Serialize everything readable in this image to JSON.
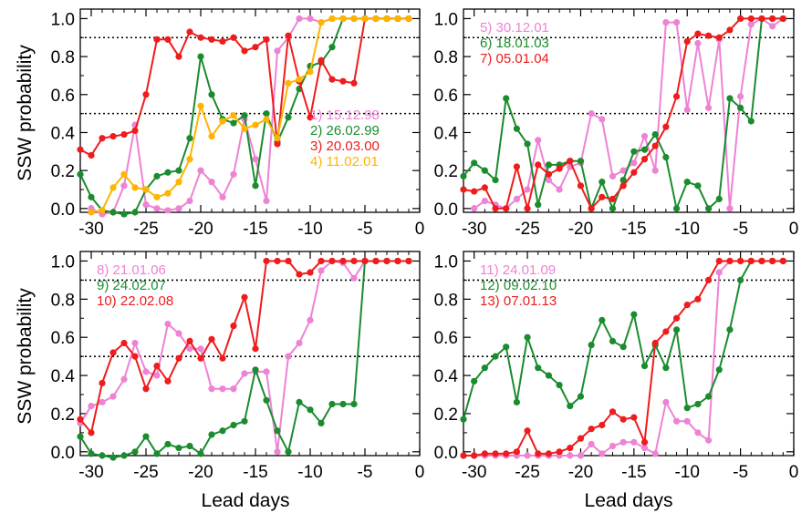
{
  "figure": {
    "ylabel": "SSW probability",
    "xlabel": "Lead days"
  },
  "chart_data": [
    {
      "type": "line",
      "panel": "top-left",
      "xlim": [
        -31,
        0
      ],
      "ylim": [
        -0.02,
        1.05
      ],
      "xticks": [
        -30,
        -25,
        -20,
        -15,
        -10,
        -5,
        0
      ],
      "yticks": [
        0.0,
        0.2,
        0.4,
        0.6,
        0.8,
        1.0
      ],
      "ytick_labels": [
        "0.0",
        "0.2",
        "0.4",
        "0.6",
        "0.8",
        "1.0"
      ],
      "reference_lines": [
        0.5,
        0.9
      ],
      "xlabel": "",
      "ylabel": "SSW probability",
      "legend_position": "lower-right",
      "series": [
        {
          "name": "1) 15.12.98",
          "color": "#ee82d4",
          "x": [
            -30,
            -29,
            -28,
            -27,
            -26,
            -25,
            -24,
            -23,
            -22,
            -21,
            -20,
            -19,
            -18,
            -17,
            -16,
            -15,
            -14,
            -13,
            -12,
            -11,
            -10,
            -9,
            -8,
            -7,
            -6,
            -5,
            -4,
            -3,
            -2,
            -1
          ],
          "y": [
            0.0,
            -0.03,
            -0.02,
            0.12,
            0.44,
            0.02,
            0.0,
            -0.01,
            0.0,
            0.04,
            0.2,
            0.14,
            0.06,
            0.18,
            0.47,
            0.26,
            0.04,
            0.83,
            0.9,
            1.0,
            1.0,
            0.98,
            1.0,
            1.0,
            1.0,
            1.0,
            1.0,
            1.0,
            1.0,
            1.0
          ]
        },
        {
          "name": "2) 26.02.99",
          "color": "#1a8c2e",
          "x": [
            -31,
            -30,
            -29,
            -28,
            -27,
            -26,
            -25,
            -24,
            -23,
            -22,
            -21,
            -20,
            -19,
            -18,
            -17,
            -16,
            -15,
            -14,
            -13,
            -12,
            -11,
            -10,
            -9,
            -8,
            -7,
            -6,
            -5,
            -4,
            -3,
            -2,
            -1
          ],
          "y": [
            0.18,
            0.06,
            -0.01,
            -0.02,
            -0.03,
            -0.02,
            0.1,
            0.17,
            0.19,
            0.2,
            0.37,
            0.8,
            0.6,
            0.47,
            0.45,
            0.49,
            0.12,
            0.5,
            0.35,
            0.48,
            0.63,
            0.75,
            0.77,
            0.85,
            1.0,
            1.0,
            1.0,
            1.0,
            1.0,
            1.0,
            1.0
          ]
        },
        {
          "name": "3) 20.03.00",
          "color": "#ee1c1c",
          "x": [
            -31,
            -30,
            -29,
            -28,
            -27,
            -26,
            -25,
            -24,
            -23,
            -22,
            -21,
            -20,
            -19,
            -18,
            -17,
            -16,
            -15,
            -14,
            -13,
            -12,
            -11,
            -10,
            -9,
            -8,
            -7,
            -6,
            -5,
            -4,
            -3,
            -2,
            -1
          ],
          "y": [
            0.31,
            0.28,
            0.37,
            0.38,
            0.39,
            0.41,
            0.6,
            0.89,
            0.89,
            0.8,
            0.93,
            0.9,
            0.89,
            0.88,
            0.9,
            0.83,
            0.85,
            0.89,
            0.34,
            0.91,
            0.67,
            0.48,
            0.78,
            0.68,
            0.67,
            0.66,
            1.0,
            1.0,
            1.0,
            1.0,
            1.0
          ]
        },
        {
          "name": "4) 11.02.01",
          "color": "#ffb400",
          "x": [
            -30,
            -29,
            -28,
            -27,
            -26,
            -25,
            -24,
            -23,
            -22,
            -21,
            -20,
            -19,
            -18,
            -17,
            -16,
            -15,
            -14,
            -13,
            -12,
            -11,
            -10,
            -9,
            -8,
            -7,
            -6,
            -5,
            -4,
            -3,
            -2,
            -1
          ],
          "y": [
            -0.02,
            -0.01,
            0.11,
            0.18,
            0.11,
            0.1,
            0.06,
            0.08,
            0.14,
            0.26,
            0.54,
            0.38,
            0.46,
            0.49,
            0.42,
            0.44,
            0.47,
            0.37,
            0.66,
            0.68,
            0.72,
            0.98,
            1.0,
            1.0,
            1.0,
            1.0,
            1.0,
            1.0,
            1.0,
            1.0
          ]
        }
      ]
    },
    {
      "type": "line",
      "panel": "top-right",
      "xlim": [
        -31,
        0
      ],
      "ylim": [
        -0.02,
        1.05
      ],
      "xticks": [
        -30,
        -25,
        -20,
        -15,
        -10,
        -5,
        0
      ],
      "yticks": [
        0.0,
        0.2,
        0.4,
        0.6,
        0.8,
        1.0
      ],
      "ytick_labels": [
        "0.0",
        "0.2",
        "0.4",
        "0.6",
        "0.8",
        "1.0"
      ],
      "reference_lines": [
        0.5,
        0.9
      ],
      "xlabel": "",
      "ylabel": "",
      "legend_position": "top-left",
      "series": [
        {
          "name": "5) 30.12.01",
          "color": "#ee82d4",
          "x": [
            -30,
            -29,
            -28,
            -27,
            -26,
            -25,
            -24,
            -23,
            -22,
            -21,
            -20,
            -19,
            -18,
            -17,
            -16,
            -15,
            -14,
            -13,
            -12,
            -11,
            -10,
            -9,
            -8,
            -7,
            -6,
            -5,
            -4,
            -3,
            -2,
            -1
          ],
          "y": [
            0.0,
            0.04,
            0.02,
            0.0,
            0.05,
            0.1,
            0.36,
            0.15,
            0.1,
            0.22,
            0.24,
            0.5,
            0.47,
            0.17,
            0.2,
            0.24,
            0.38,
            0.2,
            0.98,
            0.98,
            0.52,
            0.87,
            0.53,
            0.89,
            0.0,
            0.59,
            0.97,
            1.0,
            0.96,
            1.0
          ]
        },
        {
          "name": "6) 18.01.03",
          "color": "#1a8c2e",
          "x": [
            -31,
            -30,
            -29,
            -28,
            -27,
            -26,
            -25,
            -24,
            -23,
            -22,
            -21,
            -20,
            -19,
            -18,
            -17,
            -16,
            -15,
            -14,
            -13,
            -12,
            -11,
            -10,
            -9,
            -8,
            -7,
            -6,
            -5,
            -4,
            -3,
            -2,
            -1
          ],
          "y": [
            0.17,
            0.24,
            0.2,
            0.15,
            0.58,
            0.42,
            0.34,
            0.02,
            0.23,
            0.23,
            0.25,
            0.25,
            0.0,
            0.14,
            0.0,
            0.15,
            0.3,
            0.31,
            0.39,
            0.27,
            0.0,
            0.14,
            0.12,
            0.0,
            0.05,
            0.58,
            0.53,
            0.46,
            1.0,
            1.0,
            1.0
          ]
        },
        {
          "name": "7) 05.01.04",
          "color": "#ee1c1c",
          "x": [
            -31,
            -30,
            -29,
            -28,
            -27,
            -26,
            -25,
            -24,
            -23,
            -22,
            -21,
            -20,
            -19,
            -18,
            -17,
            -16,
            -15,
            -14,
            -13,
            -12,
            -11,
            -10,
            -9,
            -8,
            -7,
            -6,
            -5,
            -4,
            -3,
            -2,
            -1
          ],
          "y": [
            0.1,
            0.09,
            0.11,
            0.0,
            0.0,
            0.22,
            0.0,
            0.23,
            0.18,
            0.21,
            0.25,
            0.12,
            0.0,
            0.06,
            0.05,
            0.12,
            0.19,
            0.26,
            0.33,
            0.43,
            0.59,
            0.88,
            0.92,
            0.91,
            0.9,
            0.94,
            1.0,
            1.0,
            1.0,
            1.0,
            1.0
          ]
        }
      ]
    },
    {
      "type": "line",
      "panel": "bottom-left",
      "xlim": [
        -31,
        0
      ],
      "ylim": [
        -0.02,
        1.05
      ],
      "xticks": [
        -30,
        -25,
        -20,
        -15,
        -10,
        -5,
        0
      ],
      "yticks": [
        0.0,
        0.2,
        0.4,
        0.6,
        0.8,
        1.0
      ],
      "ytick_labels": [
        "0.0",
        "0.2",
        "0.4",
        "0.6",
        "0.8",
        "1.0"
      ],
      "reference_lines": [
        0.5,
        0.9
      ],
      "xlabel": "Lead days",
      "ylabel": "SSW probability",
      "legend_position": "top-left",
      "series": [
        {
          "name": "8) 21.01.06",
          "color": "#ee82d4",
          "x": [
            -31,
            -30,
            -29,
            -28,
            -27,
            -26,
            -25,
            -24,
            -23,
            -22,
            -21,
            -20,
            -19,
            -18,
            -17,
            -16,
            -15,
            -14,
            -13,
            -12,
            -11,
            -10,
            -9,
            -8,
            -7,
            -6,
            -5,
            -4,
            -3,
            -2,
            -1
          ],
          "y": [
            0.15,
            0.24,
            0.26,
            0.29,
            0.38,
            0.57,
            0.42,
            0.4,
            0.67,
            0.62,
            0.54,
            0.54,
            0.33,
            0.33,
            0.33,
            0.41,
            0.42,
            0.42,
            0.0,
            0.5,
            0.57,
            0.69,
            0.95,
            1.0,
            0.99,
            0.91,
            1.0,
            1.0,
            1.0,
            1.0,
            1.0
          ]
        },
        {
          "name": "9) 24.02.07",
          "color": "#1a8c2e",
          "x": [
            -31,
            -30,
            -29,
            -28,
            -27,
            -26,
            -25,
            -24,
            -23,
            -22,
            -21,
            -20,
            -19,
            -18,
            -17,
            -16,
            -15,
            -14,
            -13,
            -12,
            -11,
            -10,
            -9,
            -8,
            -7,
            -6,
            -5,
            -4,
            -3,
            -2,
            -1
          ],
          "y": [
            0.08,
            -0.01,
            -0.02,
            -0.03,
            -0.02,
            0.0,
            0.08,
            -0.01,
            0.04,
            0.02,
            0.03,
            -0.01,
            0.09,
            0.11,
            0.14,
            0.16,
            0.43,
            0.27,
            0.11,
            0.0,
            0.26,
            0.22,
            0.15,
            0.25,
            0.25,
            0.25,
            1.0,
            1.0,
            1.0,
            1.0,
            1.0
          ]
        },
        {
          "name": "10) 22.02.08",
          "color": "#ee1c1c",
          "x": [
            -31,
            -30,
            -29,
            -28,
            -27,
            -26,
            -25,
            -24,
            -23,
            -22,
            -21,
            -20,
            -19,
            -18,
            -17,
            -16,
            -15,
            -14,
            -13,
            -12,
            -11,
            -10,
            -9,
            -8,
            -7,
            -6,
            -5,
            -4,
            -3,
            -2,
            -1
          ],
          "y": [
            0.17,
            0.1,
            0.36,
            0.52,
            0.57,
            0.5,
            0.33,
            0.45,
            0.37,
            0.49,
            0.58,
            0.49,
            0.59,
            0.49,
            0.66,
            0.81,
            0.54,
            1.0,
            1.0,
            1.0,
            0.93,
            0.94,
            1.0,
            1.0,
            1.0,
            1.0,
            1.0,
            1.0,
            1.0,
            1.0,
            1.0
          ]
        }
      ]
    },
    {
      "type": "line",
      "panel": "bottom-right",
      "xlim": [
        -31,
        0
      ],
      "ylim": [
        -0.02,
        1.05
      ],
      "xticks": [
        -30,
        -25,
        -20,
        -15,
        -10,
        -5,
        0
      ],
      "yticks": [
        0.0,
        0.2,
        0.4,
        0.6,
        0.8,
        1.0
      ],
      "ytick_labels": [
        "0.0",
        "0.2",
        "0.4",
        "0.6",
        "0.8",
        "1.0"
      ],
      "reference_lines": [
        0.5,
        0.9
      ],
      "xlabel": "Lead days",
      "ylabel": "",
      "legend_position": "top-left",
      "series": [
        {
          "name": "11) 24.01.09",
          "color": "#ee82d4",
          "x": [
            -31,
            -30,
            -29,
            -28,
            -27,
            -26,
            -25,
            -24,
            -23,
            -22,
            -21,
            -20,
            -19,
            -18,
            -17,
            -16,
            -15,
            -14,
            -13,
            -12,
            -11,
            -10,
            -9,
            -8,
            -7,
            -6,
            -5,
            -4,
            -3,
            -2,
            -1
          ],
          "y": [
            -0.02,
            -0.02,
            -0.02,
            -0.02,
            -0.02,
            -0.02,
            -0.02,
            -0.02,
            -0.02,
            -0.02,
            -0.02,
            -0.02,
            0.04,
            -0.01,
            0.03,
            0.05,
            0.05,
            0.02,
            -0.01,
            0.26,
            0.16,
            0.16,
            0.1,
            0.06,
            0.94,
            1.0,
            1.0,
            1.0,
            1.0,
            1.0,
            1.0
          ]
        },
        {
          "name": "12) 09.02.10",
          "color": "#1a8c2e",
          "x": [
            -31,
            -30,
            -29,
            -28,
            -27,
            -26,
            -25,
            -24,
            -23,
            -22,
            -21,
            -20,
            -19,
            -18,
            -17,
            -16,
            -15,
            -14,
            -13,
            -12,
            -11,
            -10,
            -9,
            -8,
            -7,
            -6,
            -5,
            -4,
            -3,
            -2,
            -1
          ],
          "y": [
            0.17,
            0.37,
            0.44,
            0.5,
            0.55,
            0.26,
            0.6,
            0.44,
            0.4,
            0.35,
            0.24,
            0.29,
            0.56,
            0.69,
            0.58,
            0.55,
            0.72,
            0.45,
            0.56,
            0.44,
            0.64,
            0.23,
            0.25,
            0.29,
            0.43,
            0.64,
            0.9,
            1.0,
            1.0,
            1.0,
            1.0
          ]
        },
        {
          "name": "13) 07.01.13",
          "color": "#ee1c1c",
          "x": [
            -31,
            -30,
            -29,
            -28,
            -27,
            -26,
            -25,
            -24,
            -23,
            -22,
            -21,
            -20,
            -19,
            -18,
            -17,
            -16,
            -15,
            -14,
            -13,
            -12,
            -11,
            -10,
            -9,
            -8,
            -7,
            -6,
            -5,
            -4,
            -3,
            -2,
            -1
          ],
          "y": [
            -0.02,
            -0.02,
            -0.01,
            -0.01,
            -0.01,
            0.0,
            0.11,
            -0.01,
            -0.01,
            0.0,
            0.02,
            0.07,
            0.12,
            0.14,
            0.21,
            0.17,
            0.18,
            0.05,
            0.57,
            0.63,
            0.7,
            0.77,
            0.8,
            0.9,
            1.0,
            1.0,
            1.0,
            1.0,
            1.0,
            1.0,
            1.0
          ]
        }
      ]
    }
  ]
}
